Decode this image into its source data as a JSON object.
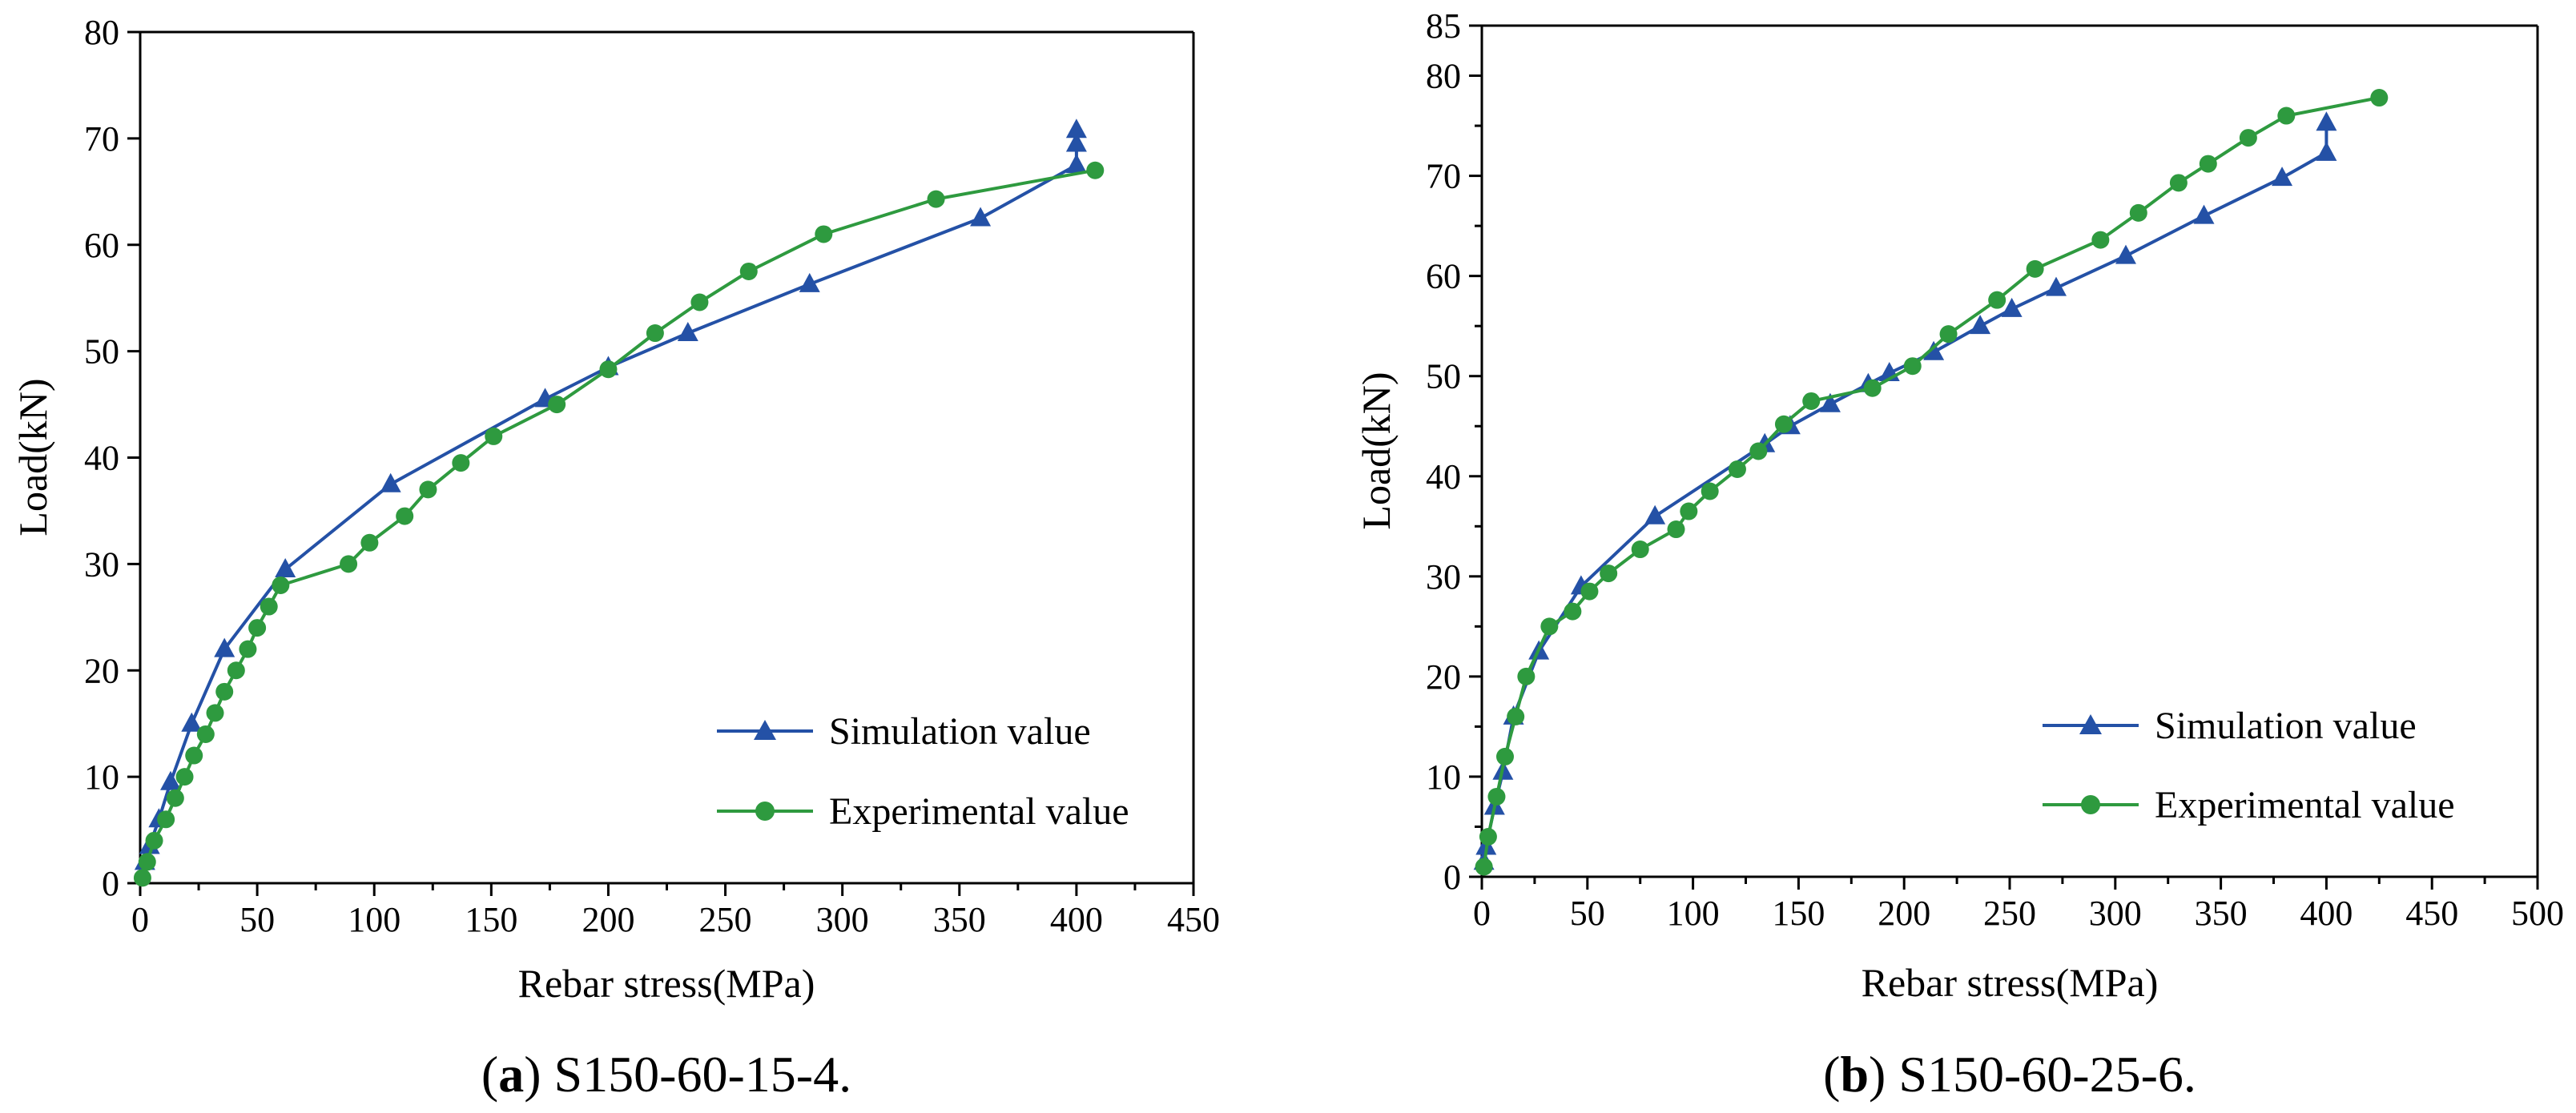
{
  "colors": {
    "simulation": "#2451a6",
    "experimental": "#2e9a3f",
    "axis": "#000000"
  },
  "chart_data": [
    {
      "type": "line",
      "panel": "a",
      "caption_letter": "a",
      "caption_text": "S150-60-15-4.",
      "xlabel": "Rebar stress(MPa)",
      "ylabel": "Load(kN)",
      "xlim": [
        0,
        450
      ],
      "ylim": [
        0,
        80
      ],
      "xticks": [
        0,
        50,
        100,
        150,
        200,
        250,
        300,
        350,
        400,
        450
      ],
      "yticks": [
        0,
        10,
        20,
        30,
        40,
        50,
        60,
        70,
        80
      ],
      "legend": {
        "position": "bottom-right",
        "labels": [
          "Simulation value",
          "Experimental value"
        ]
      },
      "series": [
        {
          "name": "Simulation value",
          "marker": "triangle",
          "points": [
            [
              2,
              2
            ],
            [
              4,
              3.5
            ],
            [
              8,
              6
            ],
            [
              13,
              9.5
            ],
            [
              22,
              15
            ],
            [
              36,
              22
            ],
            [
              62,
              29.5
            ],
            [
              107,
              37.5
            ],
            [
              173,
              45.5
            ],
            [
              200,
              48.5
            ],
            [
              234,
              51.7
            ],
            [
              286,
              56.3
            ],
            [
              359,
              62.5
            ],
            [
              400,
              67.5
            ],
            [
              400,
              69.5
            ],
            [
              400,
              70.8
            ]
          ]
        },
        {
          "name": "Experimental value",
          "marker": "circle",
          "points": [
            [
              1,
              0.5
            ],
            [
              3,
              2
            ],
            [
              6,
              4
            ],
            [
              11,
              6
            ],
            [
              15,
              8
            ],
            [
              19,
              10
            ],
            [
              23,
              12
            ],
            [
              28,
              14
            ],
            [
              32,
              16
            ],
            [
              36,
              18
            ],
            [
              41,
              20
            ],
            [
              46,
              22
            ],
            [
              50,
              24
            ],
            [
              55,
              26
            ],
            [
              60,
              28
            ],
            [
              89,
              30
            ],
            [
              98,
              32
            ],
            [
              113,
              34.5
            ],
            [
              123,
              37
            ],
            [
              137,
              39.5
            ],
            [
              151,
              42
            ],
            [
              178,
              45
            ],
            [
              200,
              48.3
            ],
            [
              220,
              51.7
            ],
            [
              239,
              54.6
            ],
            [
              260,
              57.5
            ],
            [
              292,
              61
            ],
            [
              340,
              64.3
            ],
            [
              408,
              67
            ]
          ]
        }
      ]
    },
    {
      "type": "line",
      "panel": "b",
      "caption_letter": "b",
      "caption_text": "S150-60-25-6.",
      "xlabel": "Rebar stress(MPa)",
      "ylabel": "Load(kN)",
      "xlim": [
        0,
        500
      ],
      "ylim": [
        0,
        85
      ],
      "xticks": [
        0,
        50,
        100,
        150,
        200,
        250,
        300,
        350,
        400,
        450,
        500
      ],
      "yticks": [
        0,
        10,
        20,
        30,
        40,
        50,
        60,
        70,
        80,
        85
      ],
      "legend": {
        "position": "bottom-right",
        "labels": [
          "Simulation value",
          "Experimental value"
        ]
      },
      "series": [
        {
          "name": "Simulation value",
          "marker": "triangle",
          "points": [
            [
              1,
              1.5
            ],
            [
              2,
              3
            ],
            [
              6,
              7
            ],
            [
              10,
              10.5
            ],
            [
              15,
              16
            ],
            [
              27,
              22.5
            ],
            [
              47,
              29
            ],
            [
              82,
              36
            ],
            [
              134,
              43.2
            ],
            [
              146,
              45
            ],
            [
              165,
              47.2
            ],
            [
              183,
              49.2
            ],
            [
              193,
              50.3
            ],
            [
              214,
              52.4
            ],
            [
              236,
              55
            ],
            [
              251,
              56.7
            ],
            [
              272,
              58.8
            ],
            [
              305,
              62
            ],
            [
              342,
              66
            ],
            [
              379,
              69.8
            ],
            [
              400,
              72.3
            ],
            [
              400,
              75.3
            ]
          ]
        },
        {
          "name": "Experimental value",
          "marker": "circle",
          "points": [
            [
              1,
              1
            ],
            [
              3,
              4
            ],
            [
              7,
              8
            ],
            [
              11,
              12
            ],
            [
              16,
              16
            ],
            [
              21,
              20
            ],
            [
              32,
              25
            ],
            [
              43,
              26.5
            ],
            [
              51,
              28.5
            ],
            [
              60,
              30.3
            ],
            [
              75,
              32.7
            ],
            [
              92,
              34.7
            ],
            [
              98,
              36.5
            ],
            [
              108,
              38.5
            ],
            [
              121,
              40.7
            ],
            [
              131,
              42.5
            ],
            [
              143,
              45.2
            ],
            [
              156,
              47.5
            ],
            [
              185,
              48.8
            ],
            [
              204,
              51
            ],
            [
              221,
              54.2
            ],
            [
              244,
              57.6
            ],
            [
              262,
              60.7
            ],
            [
              293,
              63.6
            ],
            [
              311,
              66.3
            ],
            [
              330,
              69.3
            ],
            [
              344,
              71.2
            ],
            [
              363,
              73.8
            ],
            [
              381,
              76
            ],
            [
              425,
              77.8
            ]
          ]
        }
      ]
    }
  ]
}
